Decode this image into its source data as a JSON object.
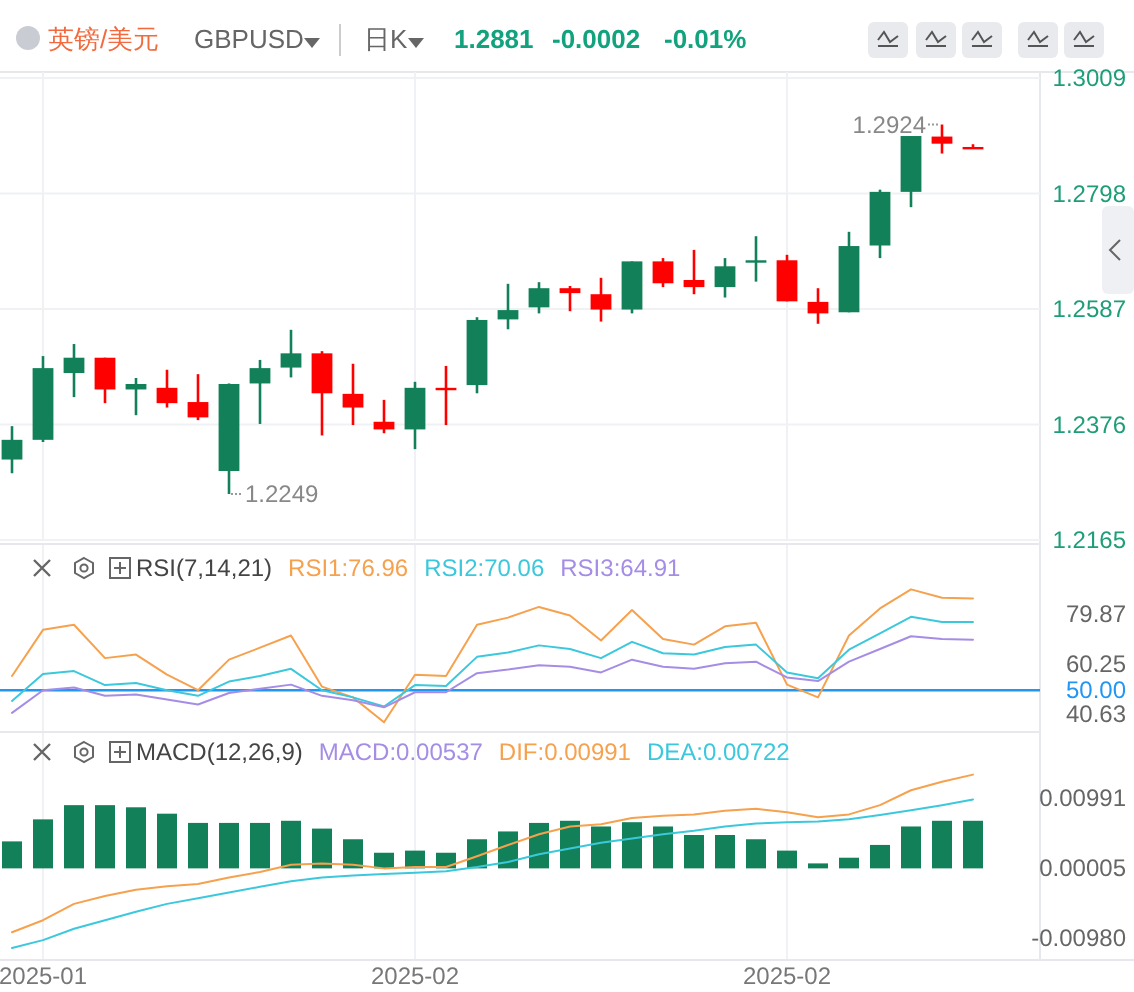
{
  "chart_data": [
    {
      "type": "candlestick",
      "title": "英镑/美元",
      "annotations": [
        "GBPUSD",
        "日K",
        "1.2881",
        "-0.0002",
        "-0.01%",
        "1.2249",
        "1.2924"
      ],
      "categories": [
        null,
        "2025-01",
        null,
        null,
        null,
        null,
        null,
        null,
        null,
        null,
        null,
        null,
        null,
        "2025-02",
        null,
        null,
        null,
        null,
        null,
        null,
        null,
        null,
        null,
        null,
        null,
        "2025-02",
        null,
        null,
        null,
        null,
        null,
        null
      ],
      "ohlc": [
        [
          1.2312,
          1.2373,
          1.2287,
          1.2348
        ],
        [
          1.2348,
          1.2501,
          1.2344,
          1.2479
        ],
        [
          1.247,
          1.2523,
          1.2426,
          1.2498
        ],
        [
          1.2498,
          1.2498,
          1.2415,
          1.244
        ],
        [
          1.244,
          1.2461,
          1.2393,
          1.245
        ],
        [
          1.2443,
          1.2476,
          1.2407,
          1.2415
        ],
        [
          1.2417,
          1.2468,
          1.2384,
          1.2389
        ],
        [
          1.2291,
          1.2451,
          1.2249,
          1.245
        ],
        [
          1.2451,
          1.2494,
          1.2377,
          1.2479
        ],
        [
          1.248,
          1.2549,
          1.2462,
          1.2506
        ],
        [
          1.2506,
          1.251,
          1.2356,
          1.2433
        ],
        [
          1.2432,
          1.2487,
          1.2375,
          1.2407
        ],
        [
          1.2381,
          1.2421,
          1.236,
          1.2367
        ],
        [
          1.2367,
          1.2454,
          1.2331,
          1.2443
        ],
        [
          1.2443,
          1.2483,
          1.2375,
          1.244
        ],
        [
          1.2448,
          1.2572,
          1.2433,
          1.2567
        ],
        [
          1.2568,
          1.2633,
          1.255,
          1.2585
        ],
        [
          1.259,
          1.2636,
          1.2579,
          1.2625
        ],
        [
          1.2625,
          1.2629,
          1.2583,
          1.2616
        ],
        [
          1.2614,
          1.2644,
          1.2564,
          1.2586
        ],
        [
          1.2586,
          1.2674,
          1.2579,
          1.2674
        ],
        [
          1.2674,
          1.268,
          1.2627,
          1.2634
        ],
        [
          1.264,
          1.2695,
          1.2614,
          1.2627
        ],
        [
          1.2627,
          1.268,
          1.2608,
          1.2665
        ],
        [
          1.2672,
          1.272,
          1.2637,
          1.2676
        ],
        [
          1.2676,
          1.2686,
          1.2601,
          1.2601
        ],
        [
          1.26,
          1.2625,
          1.256,
          1.2579
        ],
        [
          1.2581,
          1.2728,
          1.2581,
          1.2702
        ],
        [
          1.2703,
          1.2805,
          1.268,
          1.2801
        ],
        [
          1.2801,
          1.2903,
          1.2773,
          1.2903
        ],
        [
          1.2902,
          1.2924,
          1.2871,
          1.2889
        ],
        [
          1.2883,
          1.2888,
          1.2881,
          1.2881
        ]
      ],
      "colors": [
        "#128159",
        "#128159",
        "#128159",
        "#ff0000",
        "#128159",
        "#ff0000",
        "#ff0000",
        "#128159",
        "#128159",
        "#128159",
        "#ff0000",
        "#ff0000",
        "#ff0000",
        "#128159",
        "#ff0000",
        "#128159",
        "#128159",
        "#128159",
        "#ff0000",
        "#ff0000",
        "#128159",
        "#ff0000",
        "#ff0000",
        "#128159",
        "#128159",
        "#ff0000",
        "#ff0000",
        "#128159",
        "#128159",
        "#128159",
        "#ff0000",
        "#ff0000"
      ],
      "ylim": [
        1.2165,
        1.3009
      ],
      "yticks": [
        1.2165,
        1.2376,
        1.2587,
        1.2798,
        1.3009
      ],
      "grid": true,
      "tick_labels": "y"
    },
    {
      "type": "line",
      "title": "RSI(7,14,21)",
      "legend": "top",
      "tick_labels": "y",
      "grid": "x",
      "categories": [
        null,
        "2025-01",
        null,
        null,
        null,
        null,
        null,
        null,
        null,
        null,
        null,
        null,
        null,
        "2025-02",
        null,
        null,
        null,
        null,
        null,
        null,
        null,
        null,
        null,
        null,
        null,
        "2025-02",
        null,
        null,
        null,
        null,
        null,
        null
      ],
      "series": [
        {
          "name": "RSI1:76.96",
          "color": "#f6a14e",
          "values": [
            55.6,
            73.7,
            75.7,
            62.6,
            64.0,
            56.1,
            50.0,
            62.0,
            66.7,
            71.5,
            51.4,
            47.2,
            37.4,
            56.1,
            55.6,
            75.7,
            78.5,
            82.7,
            79.3,
            69.5,
            81.5,
            70.1,
            67.9,
            75.1,
            76.5,
            52.2,
            47.2,
            71.5,
            82.1,
            89.6,
            86.3,
            86.0
          ]
        },
        {
          "name": "RSI2:70.06",
          "color": "#3cc8dc",
          "values": [
            45.8,
            56.4,
            57.5,
            52.0,
            52.8,
            50.0,
            47.8,
            53.4,
            55.6,
            58.4,
            50.0,
            47.2,
            43.6,
            52.0,
            51.7,
            63.1,
            64.8,
            67.6,
            66.2,
            62.6,
            69.0,
            64.5,
            64.0,
            67.0,
            67.9,
            57.0,
            54.7,
            65.9,
            72.3,
            78.8,
            76.8,
            76.8
          ]
        },
        {
          "name": "RSI3:64.91",
          "color": "#a58de6",
          "values": [
            41.1,
            50.0,
            51.1,
            47.8,
            48.3,
            46.4,
            44.4,
            48.9,
            50.6,
            52.2,
            47.8,
            46.1,
            43.3,
            49.2,
            49.2,
            56.7,
            58.1,
            59.8,
            59.2,
            57.0,
            62.0,
            59.2,
            58.4,
            60.6,
            61.2,
            55.0,
            53.6,
            61.2,
            66.2,
            71.2,
            70.1,
            69.8
          ]
        }
      ],
      "ylim": [
        33.6,
        107.4
      ],
      "yticks": [
        40.63,
        60.25,
        79.87
      ],
      "ref_lines": [
        {
          "axis": "y",
          "value": 50,
          "label": "50.00",
          "color": "#2196f3"
        }
      ]
    },
    {
      "type": "bar",
      "title": "MACD(12,26,9)",
      "legend": "top",
      "grid": "x",
      "annotations": [
        "MACD:0.00537"
      ],
      "categories": [
        null,
        "2025-01",
        null,
        null,
        null,
        null,
        null,
        null,
        null,
        null,
        null,
        null,
        null,
        "2025-02",
        null,
        null,
        null,
        null,
        null,
        null,
        null,
        null,
        null,
        null,
        null,
        "2025-02",
        null,
        null,
        null,
        null,
        null,
        null
      ],
      "series": [
        {
          "type": "bar",
          "color": "#128159",
          "values": [
            0.0038,
            0.0069,
            0.0089,
            0.0089,
            0.0086,
            0.0077,
            0.0064,
            0.0064,
            0.0064,
            0.0067,
            0.0056,
            0.0041,
            0.0022,
            0.0025,
            0.0022,
            0.0041,
            0.0052,
            0.0064,
            0.0067,
            0.0059,
            0.0065,
            0.0059,
            0.0047,
            0.0047,
            0.0041,
            0.0025,
            0.0007,
            0.0015,
            0.0033,
            0.0059,
            0.0067,
            0.0067
          ]
        },
        {
          "type": "line",
          "name": "DIF:0.00991",
          "color": "#f6a14e",
          "values": [
            -0.009,
            -0.0073,
            -0.005,
            -0.0039,
            -0.003,
            -0.0025,
            -0.0022,
            -0.0013,
            -0.0005,
            0.0005,
            0.0007,
            0.0005,
            0.0,
            0.0002,
            0.0002,
            0.0017,
            0.0033,
            0.0048,
            0.0059,
            0.0062,
            0.0071,
            0.0074,
            0.0076,
            0.0081,
            0.0084,
            0.0079,
            0.0072,
            0.0076,
            0.0089,
            0.011,
            0.0122,
            0.0132
          ]
        },
        {
          "type": "line",
          "name": "DEA:0.00722",
          "color": "#3cc8dc",
          "values": [
            -0.0112,
            -0.0101,
            -0.0085,
            -0.0073,
            -0.0061,
            -0.005,
            -0.0042,
            -0.0034,
            -0.0026,
            -0.0018,
            -0.0013,
            -0.001,
            -0.0008,
            -0.0006,
            -0.0004,
            0.0002,
            0.0009,
            0.002,
            0.0028,
            0.0036,
            0.0042,
            0.0048,
            0.0053,
            0.0059,
            0.0063,
            0.0065,
            0.0066,
            0.0069,
            0.0075,
            0.0082,
            0.0089,
            0.0097
          ]
        }
      ],
      "ylim": [
        -0.0129,
        0.0192
      ],
      "yticks": [
        {
          "value": -0.0098,
          "label": "-0.00980"
        },
        {
          "value": 5e-05,
          "label": "0.00005"
        },
        0.00991
      ]
    }
  ]
}
